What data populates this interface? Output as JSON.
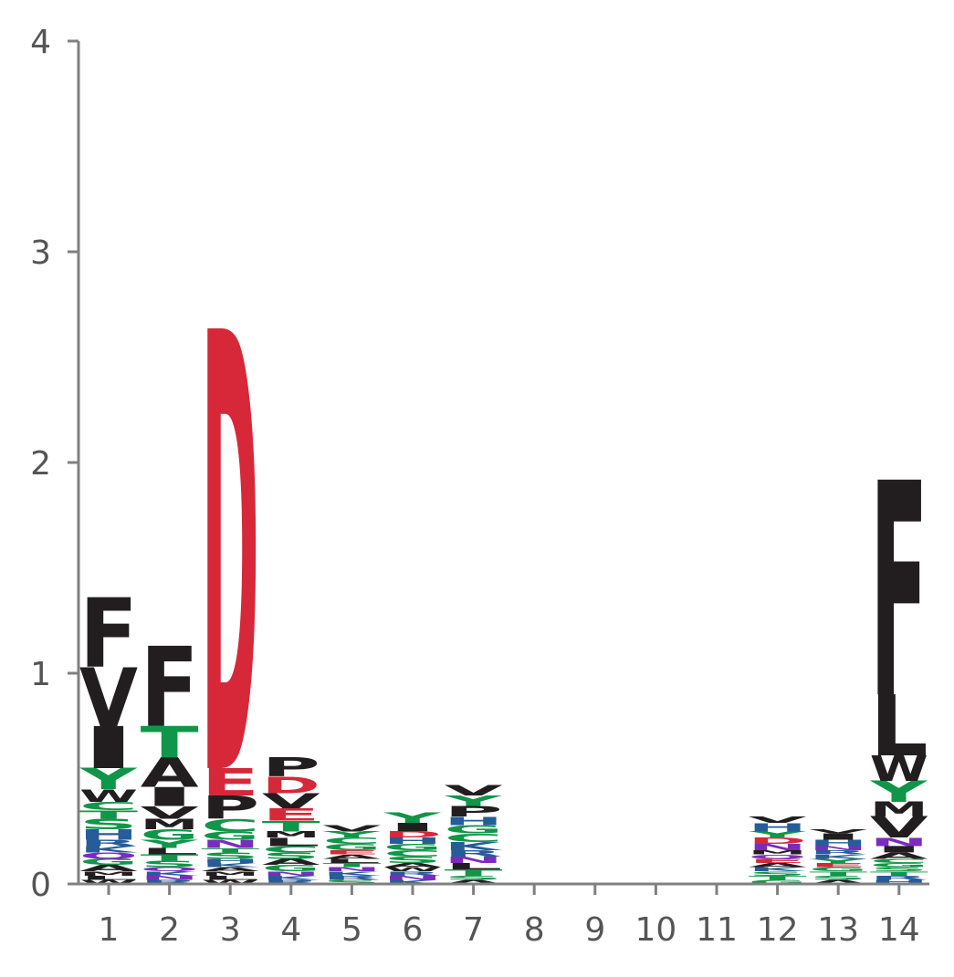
{
  "chart_data": {
    "type": "sequence-logo",
    "title": "",
    "xlabel": "",
    "ylabel": "",
    "ylim": [
      0,
      4
    ],
    "yticks": [
      0,
      1,
      2,
      3,
      4
    ],
    "positions": [
      "1",
      "2",
      "3",
      "4",
      "5",
      "6",
      "7",
      "8",
      "9",
      "10",
      "11",
      "12",
      "13",
      "14"
    ],
    "colors": {
      "acidic": "#d62839",
      "polar": "#109648",
      "hydrophobic": "#221e1f",
      "basic": "#255c99",
      "neutral": "#7b2cbf"
    },
    "letter_colors": {
      "D": "#d62839",
      "E": "#d62839",
      "G": "#109648",
      "S": "#109648",
      "T": "#109648",
      "Y": "#109648",
      "C": "#109648",
      "A": "#221e1f",
      "F": "#221e1f",
      "I": "#221e1f",
      "L": "#221e1f",
      "M": "#221e1f",
      "P": "#221e1f",
      "V": "#221e1f",
      "W": "#221e1f",
      "H": "#255c99",
      "K": "#255c99",
      "R": "#255c99",
      "N": "#7b2cbf",
      "Q": "#7b2cbf"
    },
    "stacks": [
      [
        [
          "W",
          0.02
        ],
        [
          "L",
          0.02
        ],
        [
          "M",
          0.02
        ],
        [
          "A",
          0.03
        ],
        [
          "G",
          0.03
        ],
        [
          "Q",
          0.03
        ],
        [
          "K",
          0.03
        ],
        [
          "R",
          0.03
        ],
        [
          "H",
          0.05
        ],
        [
          "S",
          0.05
        ],
        [
          "T",
          0.04
        ],
        [
          "C",
          0.04
        ],
        [
          "W",
          0.06
        ],
        [
          "Y",
          0.1
        ],
        [
          "I",
          0.2
        ],
        [
          "V",
          0.28
        ],
        [
          "F",
          0.33
        ]
      ],
      [
        [
          "R",
          0.02
        ],
        [
          "N",
          0.02
        ],
        [
          "K",
          0.02
        ],
        [
          "Q",
          0.02
        ],
        [
          "S",
          0.03
        ],
        [
          "T",
          0.03
        ],
        [
          "L",
          0.03
        ],
        [
          "Y",
          0.04
        ],
        [
          "G",
          0.05
        ],
        [
          "M",
          0.05
        ],
        [
          "V",
          0.06
        ],
        [
          "I",
          0.09
        ],
        [
          "A",
          0.14
        ],
        [
          "T",
          0.15
        ],
        [
          "F",
          0.38
        ]
      ],
      [
        [
          "W",
          0.02
        ],
        [
          "L",
          0.02
        ],
        [
          "M",
          0.02
        ],
        [
          "A",
          0.02
        ],
        [
          "K",
          0.02
        ],
        [
          "H",
          0.02
        ],
        [
          "S",
          0.03
        ],
        [
          "T",
          0.02
        ],
        [
          "N",
          0.04
        ],
        [
          "G",
          0.04
        ],
        [
          "C",
          0.06
        ],
        [
          "P",
          0.11
        ],
        [
          "E",
          0.13
        ],
        [
          "D",
          2.09
        ]
      ],
      [
        [
          "R",
          0.02
        ],
        [
          "K",
          0.02
        ],
        [
          "N",
          0.02
        ],
        [
          "G",
          0.03
        ],
        [
          "A",
          0.03
        ],
        [
          "S",
          0.03
        ],
        [
          "C",
          0.03
        ],
        [
          "L",
          0.04
        ],
        [
          "M",
          0.03
        ],
        [
          "T",
          0.05
        ],
        [
          "E",
          0.06
        ],
        [
          "V",
          0.07
        ],
        [
          "D",
          0.08
        ],
        [
          "P",
          0.09
        ]
      ],
      [
        [
          "S",
          0.02
        ],
        [
          "R",
          0.02
        ],
        [
          "K",
          0.02
        ],
        [
          "N",
          0.02
        ],
        [
          "T",
          0.02
        ],
        [
          "L",
          0.02
        ],
        [
          "A",
          0.02
        ],
        [
          "E",
          0.02
        ],
        [
          "G",
          0.03
        ],
        [
          "C",
          0.03
        ],
        [
          "Y",
          0.03
        ],
        [
          "V",
          0.03
        ]
      ],
      [
        [
          "K",
          0.02
        ],
        [
          "N",
          0.02
        ],
        [
          "R",
          0.02
        ],
        [
          "W",
          0.02
        ],
        [
          "A",
          0.02
        ],
        [
          "S",
          0.03
        ],
        [
          "C",
          0.03
        ],
        [
          "G",
          0.03
        ],
        [
          "H",
          0.03
        ],
        [
          "D",
          0.03
        ],
        [
          "I",
          0.04
        ],
        [
          "Y",
          0.05
        ]
      ],
      [
        [
          "A",
          0.02
        ],
        [
          "S",
          0.02
        ],
        [
          "T",
          0.03
        ],
        [
          "L",
          0.03
        ],
        [
          "N",
          0.03
        ],
        [
          "R",
          0.03
        ],
        [
          "K",
          0.04
        ],
        [
          "C",
          0.04
        ],
        [
          "G",
          0.04
        ],
        [
          "H",
          0.04
        ],
        [
          "P",
          0.05
        ],
        [
          "Y",
          0.05
        ],
        [
          "V",
          0.05
        ]
      ],
      [],
      [],
      [],
      [],
      [
        [
          "G",
          0.02
        ],
        [
          "T",
          0.02
        ],
        [
          "S",
          0.02
        ],
        [
          "K",
          0.02
        ],
        [
          "A",
          0.02
        ],
        [
          "E",
          0.02
        ],
        [
          "Q",
          0.02
        ],
        [
          "M",
          0.02
        ],
        [
          "N",
          0.03
        ],
        [
          "D",
          0.03
        ],
        [
          "Y",
          0.03
        ],
        [
          "H",
          0.04
        ],
        [
          "V",
          0.03
        ]
      ],
      [
        [
          "A",
          0.02
        ],
        [
          "S",
          0.02
        ],
        [
          "T",
          0.02
        ],
        [
          "G",
          0.02
        ],
        [
          "E",
          0.02
        ],
        [
          "Y",
          0.02
        ],
        [
          "K",
          0.02
        ],
        [
          "R",
          0.02
        ],
        [
          "N",
          0.02
        ],
        [
          "H",
          0.03
        ],
        [
          "I",
          0.03
        ],
        [
          "V",
          0.02
        ]
      ],
      [
        [
          "H",
          0.02
        ],
        [
          "R",
          0.02
        ],
        [
          "T",
          0.02
        ],
        [
          "S",
          0.02
        ],
        [
          "G",
          0.02
        ],
        [
          "C",
          0.02
        ],
        [
          "A",
          0.03
        ],
        [
          "I",
          0.03
        ],
        [
          "N",
          0.04
        ],
        [
          "V",
          0.1
        ],
        [
          "M",
          0.07
        ],
        [
          "Y",
          0.1
        ],
        [
          "W",
          0.12
        ],
        [
          "L",
          0.29
        ],
        [
          "F",
          1.02
        ]
      ]
    ]
  }
}
